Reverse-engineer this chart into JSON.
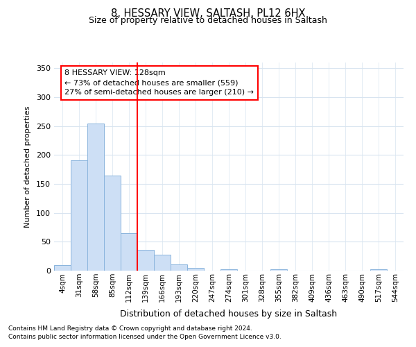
{
  "title1": "8, HESSARY VIEW, SALTASH, PL12 6HX",
  "title2": "Size of property relative to detached houses in Saltash",
  "xlabel": "Distribution of detached houses by size in Saltash",
  "ylabel": "Number of detached properties",
  "categories": [
    "4sqm",
    "31sqm",
    "58sqm",
    "85sqm",
    "112sqm",
    "139sqm",
    "166sqm",
    "193sqm",
    "220sqm",
    "247sqm",
    "274sqm",
    "301sqm",
    "328sqm",
    "355sqm",
    "382sqm",
    "409sqm",
    "436sqm",
    "463sqm",
    "490sqm",
    "517sqm",
    "544sqm"
  ],
  "values": [
    10,
    191,
    255,
    165,
    65,
    36,
    28,
    11,
    5,
    0,
    3,
    0,
    0,
    3,
    0,
    0,
    0,
    0,
    0,
    2,
    0
  ],
  "bar_color": "#cddff5",
  "bar_edge_color": "#8ab4dd",
  "vline_x_index": 4.5,
  "vline_color": "red",
  "annotation_text": "8 HESSARY VIEW: 128sqm\n← 73% of detached houses are smaller (559)\n27% of semi-detached houses are larger (210) →",
  "annotation_box_color": "white",
  "annotation_box_edge": "red",
  "footnote1": "Contains HM Land Registry data © Crown copyright and database right 2024.",
  "footnote2": "Contains public sector information licensed under the Open Government Licence v3.0.",
  "bg_color": "#ffffff",
  "plot_bg_color": "#ffffff",
  "ylim": [
    0,
    360
  ],
  "yticks": [
    0,
    50,
    100,
    150,
    200,
    250,
    300,
    350
  ]
}
